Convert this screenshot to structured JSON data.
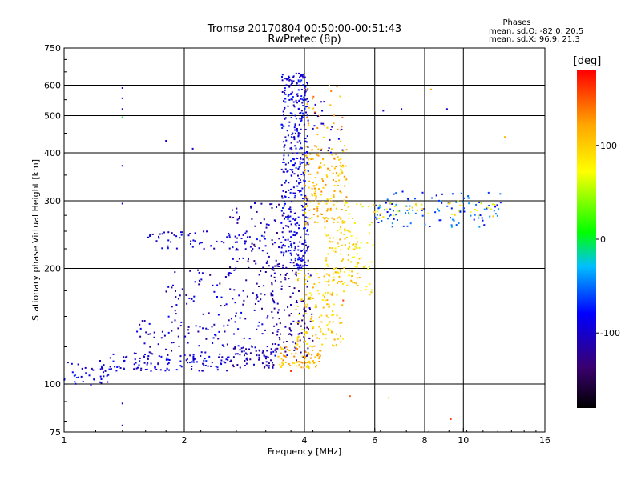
{
  "chart_data": {
    "type": "scatter",
    "title": "Tromsø 20170804 00:50:00-00:51:43",
    "subtitle": "RwPretec (8p)",
    "stats": {
      "heading": "Phases",
      "line1": "mean, sd,O: -82.0, 20.5",
      "line2": "mean, sd,X:  96.9, 21.3"
    },
    "xlabel": "Frequency [MHz]",
    "ylabel": "Stationary phase Virtual Height [km]",
    "x_scale": "log2",
    "y_scale": "log",
    "xlim": [
      1,
      16
    ],
    "ylim": [
      75,
      750
    ],
    "xticks": [
      1,
      2,
      4,
      6,
      8,
      10,
      16
    ],
    "xtick_labels": [
      "1",
      "2",
      "4",
      "6",
      "8",
      "10",
      "16"
    ],
    "ygrid": [
      100,
      200,
      300,
      400,
      500,
      600
    ],
    "yticks": [
      75,
      100,
      200,
      300,
      400,
      500,
      600,
      750
    ],
    "ytick_labels": [
      "75",
      "100",
      "200",
      "300",
      "400",
      "500",
      "600",
      "750"
    ],
    "grid": true,
    "colorbar": {
      "label": "[deg]",
      "range": [
        -180,
        180
      ],
      "ticks": [
        100,
        0,
        -100
      ],
      "tick_labels": [
        "100",
        "0",
        "-100"
      ],
      "colors": [
        "#000000",
        "#3a006f",
        "#0000ff",
        "#00bfff",
        "#00ff00",
        "#ffff00",
        "#ffa500",
        "#ff0000"
      ]
    },
    "clusters": [
      {
        "x": [
          1.0,
          1.3
        ],
        "y": [
          98,
          115
        ],
        "phase": -90,
        "n": 40
      },
      {
        "x": [
          1.3,
          2.6
        ],
        "y": [
          108,
          120
        ],
        "phase": -95,
        "n": 120
      },
      {
        "x": [
          2.6,
          3.4
        ],
        "y": [
          110,
          125
        ],
        "phase": -110,
        "n": 70
      },
      {
        "x": [
          1.5,
          3.3
        ],
        "y": [
          120,
          150
        ],
        "phase": -100,
        "n": 90
      },
      {
        "x": [
          1.8,
          3.5
        ],
        "y": [
          150,
          200
        ],
        "phase": -105,
        "n": 90
      },
      {
        "x": [
          1.6,
          3.2
        ],
        "y": [
          225,
          250
        ],
        "phase": -95,
        "n": 70
      },
      {
        "x": [
          2.6,
          3.6
        ],
        "y": [
          200,
          300
        ],
        "phase": -110,
        "n": 80
      },
      {
        "x": [
          3.5,
          4.1
        ],
        "y": [
          200,
          650
        ],
        "phase": -90,
        "n": 420
      },
      {
        "x": [
          3.3,
          4.2
        ],
        "y": [
          115,
          210
        ],
        "phase": -120,
        "n": 130
      },
      {
        "x": [
          3.4,
          4.4
        ],
        "y": [
          110,
          125
        ],
        "phase": 110,
        "n": 80
      },
      {
        "x": [
          3.8,
          5.0
        ],
        "y": [
          125,
          200
        ],
        "phase": 100,
        "n": 140
      },
      {
        "x": [
          4.0,
          5.1
        ],
        "y": [
          260,
          420
        ],
        "phase": 110,
        "n": 170
      },
      {
        "x": [
          4.5,
          5.5
        ],
        "y": [
          180,
          260
        ],
        "phase": 95,
        "n": 90
      },
      {
        "x": [
          5.0,
          6.0
        ],
        "y": [
          170,
          300
        ],
        "phase": 80,
        "n": 50
      },
      {
        "x": [
          6.0,
          12.5
        ],
        "y": [
          255,
          320
        ],
        "phase": -60,
        "n": 110
      },
      {
        "x": [
          6.0,
          12.0
        ],
        "y": [
          270,
          300
        ],
        "phase": 80,
        "n": 40
      },
      {
        "x": [
          4.0,
          5.0
        ],
        "y": [
          420,
          600
        ],
        "phase": 120,
        "n": 30
      },
      {
        "x": [
          4.2,
          5.0
        ],
        "y": [
          400,
          550
        ],
        "phase": -100,
        "n": 20
      }
    ],
    "points": [
      {
        "x": 1.4,
        "y": 590,
        "phase": -100
      },
      {
        "x": 1.4,
        "y": 555,
        "phase": -100
      },
      {
        "x": 1.4,
        "y": 520,
        "phase": -100
      },
      {
        "x": 1.4,
        "y": 495,
        "phase": 0
      },
      {
        "x": 1.4,
        "y": 370,
        "phase": -100
      },
      {
        "x": 1.4,
        "y": 295,
        "phase": -100
      },
      {
        "x": 1.4,
        "y": 89,
        "phase": -100
      },
      {
        "x": 1.4,
        "y": 78,
        "phase": -100
      },
      {
        "x": 1.8,
        "y": 430,
        "phase": -100
      },
      {
        "x": 2.1,
        "y": 410,
        "phase": -100
      },
      {
        "x": 5.2,
        "y": 93,
        "phase": 150
      },
      {
        "x": 6.5,
        "y": 92,
        "phase": 50
      },
      {
        "x": 8.3,
        "y": 585,
        "phase": 120
      },
      {
        "x": 9.3,
        "y": 81,
        "phase": 160
      },
      {
        "x": 9.1,
        "y": 520,
        "phase": -100
      },
      {
        "x": 6.3,
        "y": 515,
        "phase": -100
      },
      {
        "x": 7.0,
        "y": 520,
        "phase": -100
      },
      {
        "x": 12.7,
        "y": 440,
        "phase": 110
      },
      {
        "x": 3.7,
        "y": 108,
        "phase": 160
      },
      {
        "x": 5.0,
        "y": 165,
        "phase": 160
      }
    ]
  }
}
